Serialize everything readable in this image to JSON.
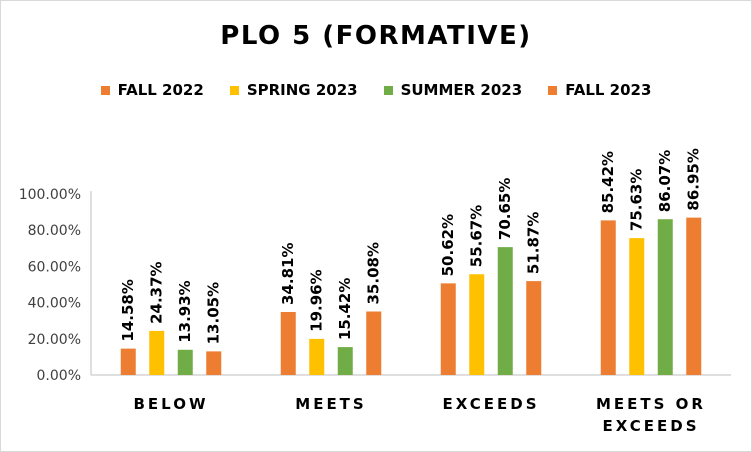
{
  "chart_data": {
    "type": "bar",
    "title": "PLO 5 (FORMATIVE)",
    "categories": [
      [
        "BELOW"
      ],
      [
        "MEETS"
      ],
      [
        "EXCEEDS"
      ],
      [
        "MEETS OR",
        "EXCEEDS"
      ]
    ],
    "series": [
      {
        "name": "FALL 2022",
        "color": "#ED7D31",
        "values": [
          14.58,
          34.81,
          50.62,
          85.42
        ],
        "labels": [
          "14.58%",
          "34.81%",
          "50.62%",
          "85.42%"
        ]
      },
      {
        "name": "SPRING 2023",
        "color": "#FFC000",
        "values": [
          24.37,
          19.96,
          55.67,
          75.63
        ],
        "labels": [
          "24.37%",
          "19.96%",
          "55.67%",
          "75.63%"
        ]
      },
      {
        "name": "SUMMER 2023",
        "color": "#70AD47",
        "values": [
          13.93,
          15.42,
          70.65,
          86.07
        ],
        "labels": [
          "13.93%",
          "15.42%",
          "70.65%",
          "86.07%"
        ]
      },
      {
        "name": "FALL 2023",
        "color": "#ED7D31",
        "values": [
          13.05,
          35.08,
          51.87,
          86.95
        ],
        "labels": [
          "13.05%",
          "35.08%",
          "51.87%",
          "86.95%"
        ]
      }
    ],
    "yticks": [
      0,
      20,
      40,
      60,
      80,
      100
    ],
    "ytick_labels": [
      "0.00%",
      "20.00%",
      "40.00%",
      "60.00%",
      "80.00%",
      "100.00%"
    ],
    "ylim": [
      0,
      100
    ],
    "legend": "top",
    "grid": false
  }
}
